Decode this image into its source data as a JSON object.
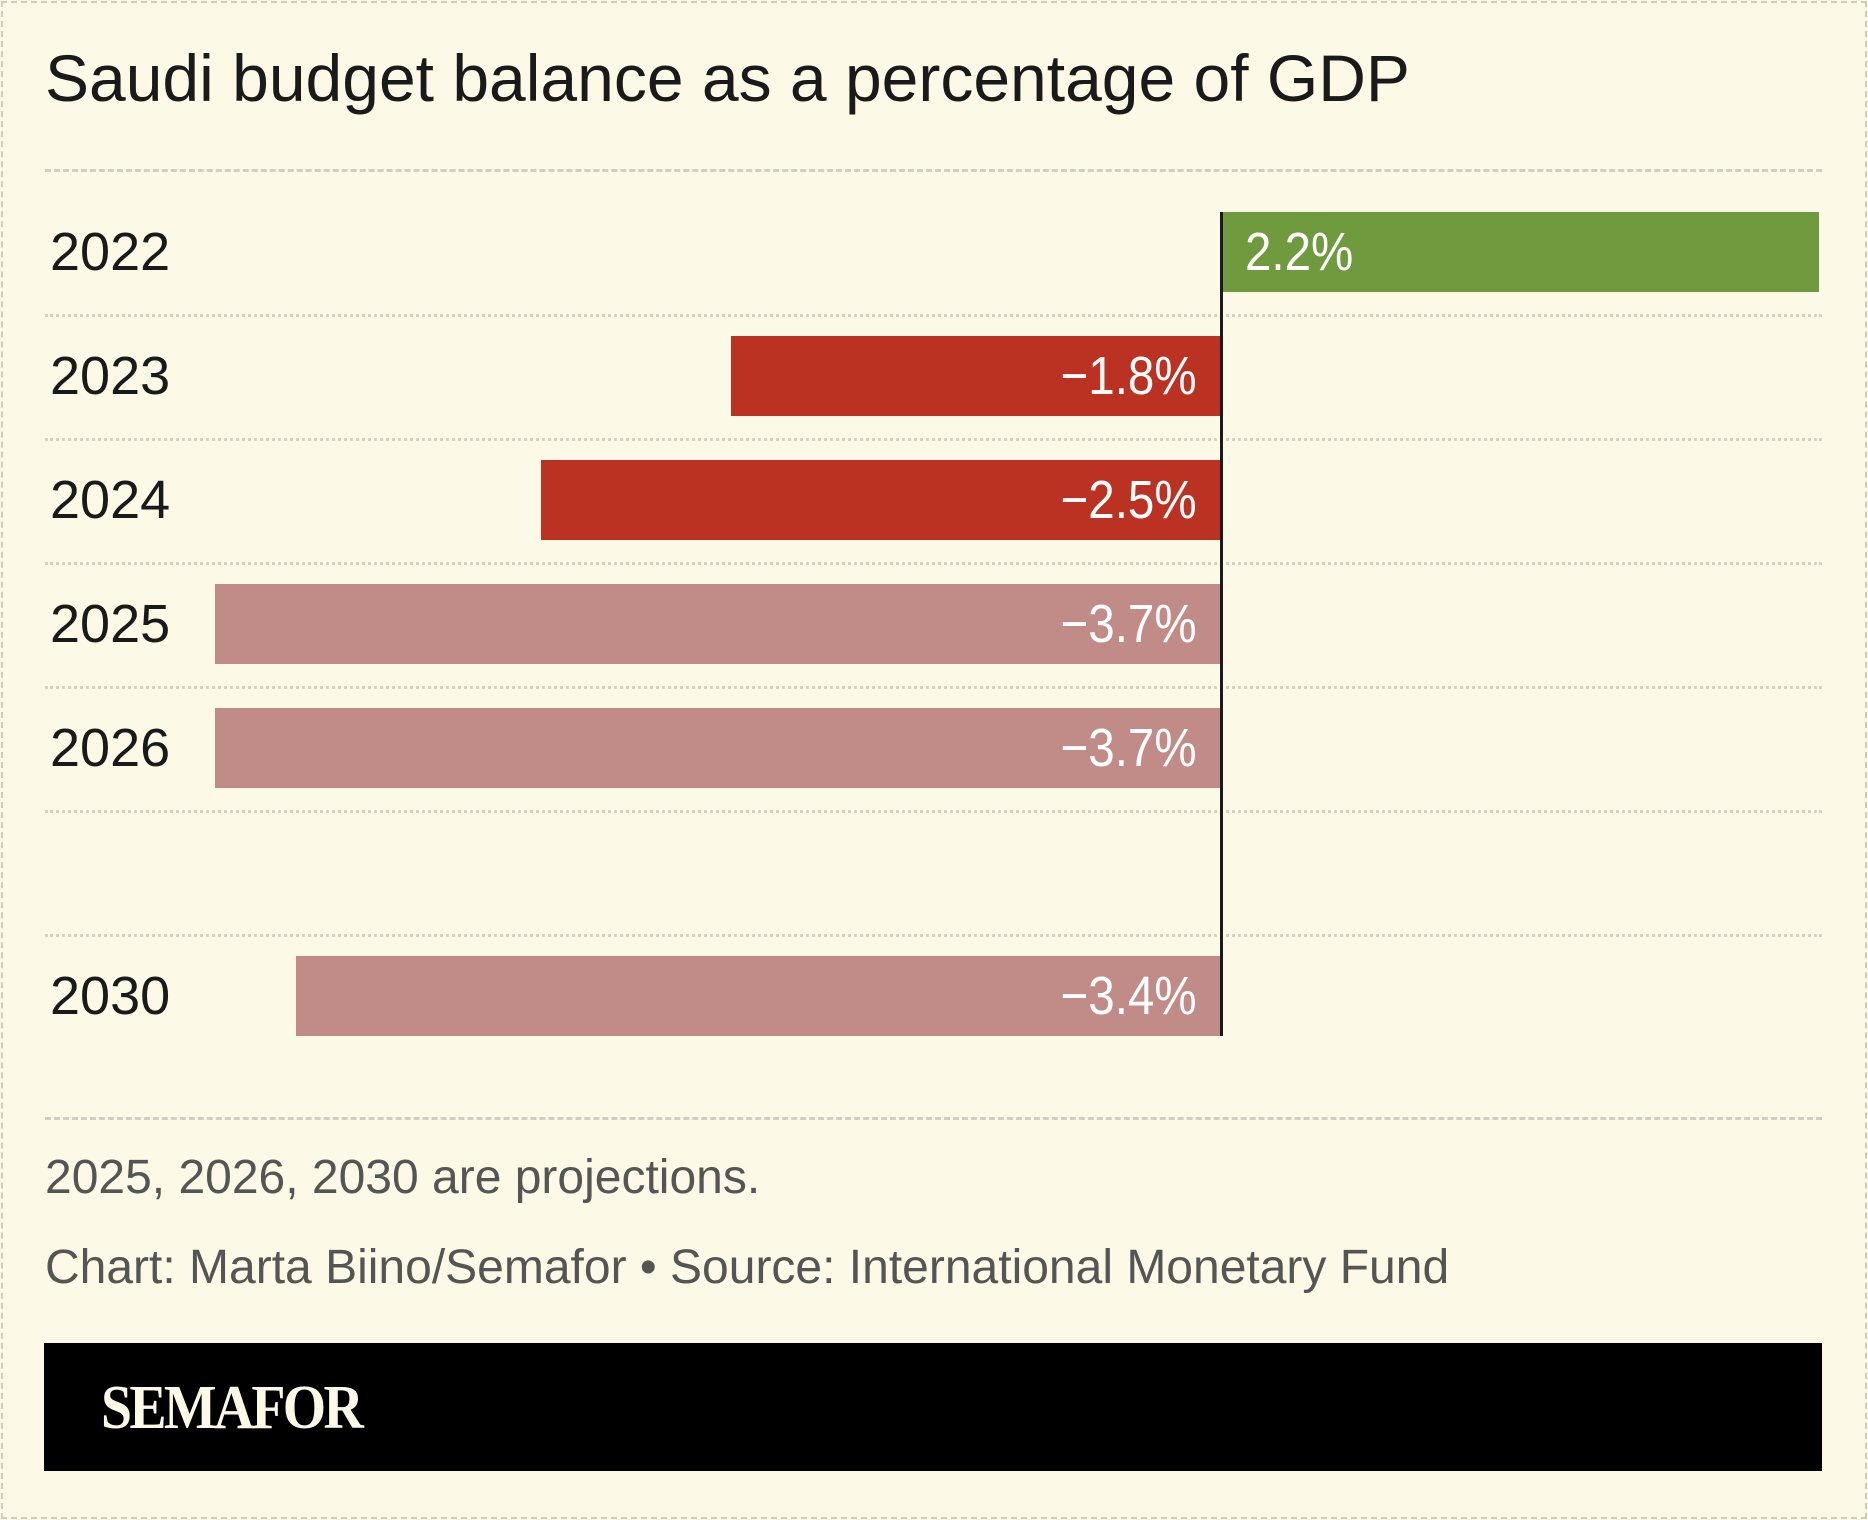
{
  "chart_data": {
    "type": "bar",
    "orientation": "horizontal",
    "title": "Saudi budget balance as a percentage of GDP",
    "categories": [
      "2022",
      "2023",
      "2024",
      "2025",
      "2026",
      "2030"
    ],
    "values": [
      2.2,
      -1.8,
      -2.5,
      -3.7,
      -3.7,
      -3.4
    ],
    "labels": [
      "2.2%",
      "−1.8%",
      "−2.5%",
      "−3.7%",
      "−3.7%",
      "−3.4%"
    ],
    "projection": [
      false,
      false,
      false,
      true,
      true,
      true
    ],
    "gap_before_last": true,
    "xlim": [
      -4.1,
      2.2
    ],
    "grid": false,
    "colors": {
      "positive": "#709a3e",
      "negative": "#bc3222",
      "projection": "#c18b88",
      "background": "#fcf9e6"
    }
  },
  "notes": {
    "projection_note": "2025, 2026, 2030 are projections.",
    "credit": "Chart: Marta Biino/Semafor • Source: International Monetary Fund"
  },
  "brand": {
    "logo": "SEMAFOR"
  }
}
